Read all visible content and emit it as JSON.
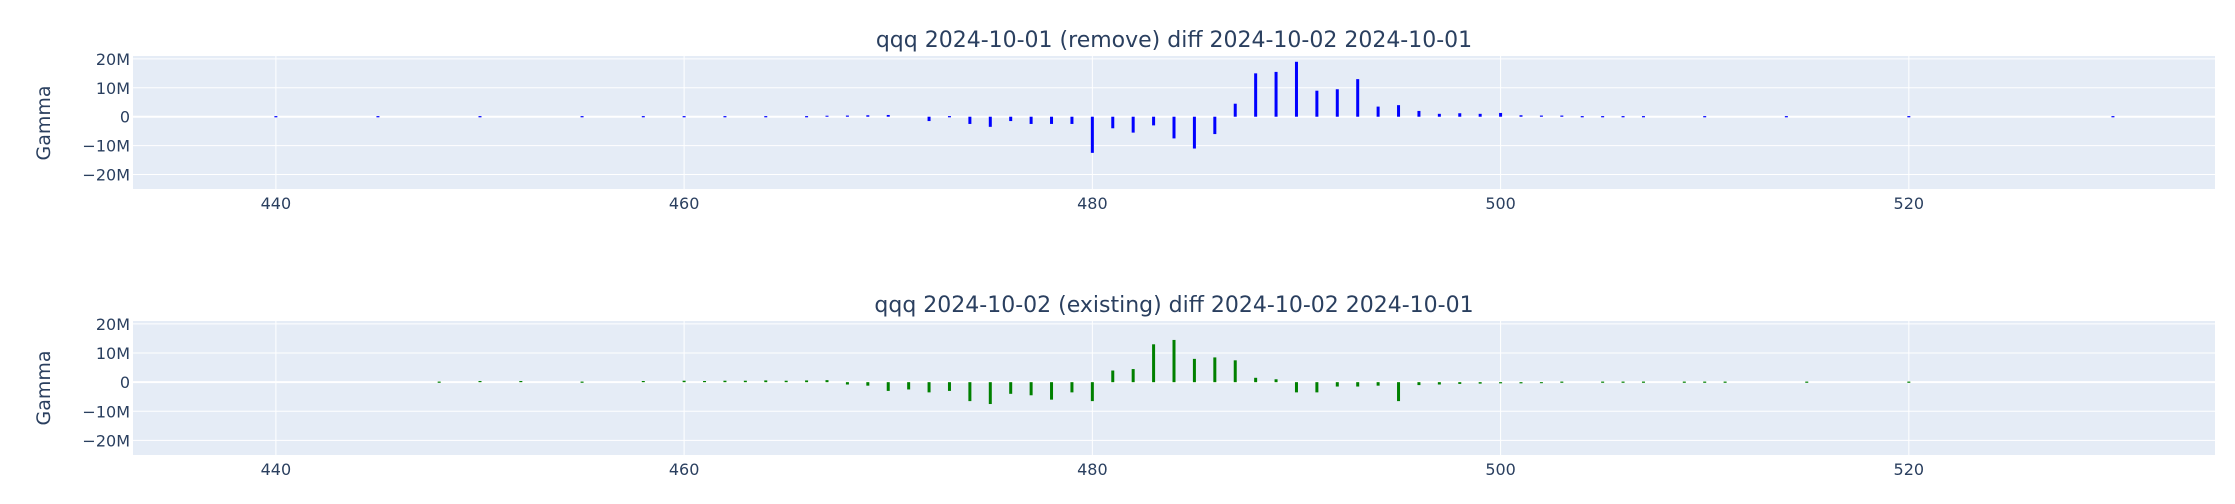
{
  "chart_data": [
    {
      "type": "bar",
      "title": "qqq 2024-10-01 (remove) diff 2024-10-02 2024-10-01",
      "ylabel": "Gamma",
      "xlabel": "",
      "color": "#0000ff",
      "background": "#e5ecf6",
      "xlim": [
        433,
        535
      ],
      "ylim": [
        -25000000,
        21000000
      ],
      "xticks": [
        {
          "v": 440,
          "label": "440"
        },
        {
          "v": 460,
          "label": "460"
        },
        {
          "v": 480,
          "label": "480"
        },
        {
          "v": 500,
          "label": "500"
        },
        {
          "v": 520,
          "label": "520"
        }
      ],
      "yticks": [
        {
          "v": 20000000,
          "label": "20M"
        },
        {
          "v": 10000000,
          "label": "10M"
        },
        {
          "v": 0,
          "label": "0"
        },
        {
          "v": -10000000,
          "label": "−10M"
        },
        {
          "v": -20000000,
          "label": "−20M"
        }
      ],
      "x": [
        440,
        445,
        450,
        455,
        458,
        460,
        462,
        464,
        466,
        467,
        468,
        469,
        470,
        472,
        473,
        474,
        475,
        476,
        477,
        478,
        479,
        480,
        481,
        482,
        483,
        484,
        485,
        486,
        487,
        488,
        489,
        490,
        491,
        492,
        493,
        494,
        495,
        496,
        497,
        498,
        499,
        500,
        501,
        502,
        503,
        504,
        505,
        506,
        507,
        510,
        514,
        520,
        530
      ],
      "values": [
        50000,
        50000,
        50000,
        80000,
        100000,
        150000,
        200000,
        250000,
        300000,
        350000,
        400000,
        500000,
        600000,
        -1500000,
        -300000,
        -2500000,
        -3500000,
        -1500000,
        -2500000,
        -2500000,
        -2500000,
        -12500000,
        -4000000,
        -5500000,
        -3000000,
        -7500000,
        -11000000,
        -6000000,
        4500000,
        15000000,
        15500000,
        19000000,
        9000000,
        9500000,
        13000000,
        3500000,
        4000000,
        2000000,
        1000000,
        1200000,
        1000000,
        1300000,
        500000,
        400000,
        400000,
        300000,
        300000,
        250000,
        200000,
        150000,
        100000,
        80000,
        50000
      ]
    },
    {
      "type": "bar",
      "title": "qqq 2024-10-02 (existing) diff 2024-10-02 2024-10-01",
      "ylabel": "Gamma",
      "xlabel": "",
      "color": "#008000",
      "background": "#e5ecf6",
      "xlim": [
        433,
        535
      ],
      "ylim": [
        -25000000,
        21000000
      ],
      "xticks": [
        {
          "v": 440,
          "label": "440"
        },
        {
          "v": 460,
          "label": "460"
        },
        {
          "v": 480,
          "label": "480"
        },
        {
          "v": 500,
          "label": "500"
        },
        {
          "v": 520,
          "label": "520"
        }
      ],
      "yticks": [
        {
          "v": 20000000,
          "label": "20M"
        },
        {
          "v": 10000000,
          "label": "10M"
        },
        {
          "v": 0,
          "label": "0"
        },
        {
          "v": -10000000,
          "label": "−10M"
        },
        {
          "v": -20000000,
          "label": "−20M"
        }
      ],
      "x": [
        448,
        450,
        452,
        455,
        458,
        460,
        461,
        462,
        463,
        464,
        465,
        466,
        467,
        468,
        469,
        470,
        471,
        472,
        473,
        474,
        475,
        476,
        477,
        478,
        479,
        480,
        481,
        482,
        483,
        484,
        485,
        486,
        487,
        488,
        489,
        490,
        491,
        492,
        493,
        494,
        495,
        496,
        497,
        498,
        499,
        500,
        501,
        502,
        503,
        505,
        506,
        507,
        509,
        510,
        511,
        515,
        520
      ],
      "values": [
        300000,
        400000,
        400000,
        300000,
        400000,
        500000,
        400000,
        500000,
        500000,
        600000,
        500000,
        600000,
        700000,
        -800000,
        -1200000,
        -3000000,
        -2500000,
        -3500000,
        -3000000,
        -6500000,
        -7500000,
        -4000000,
        -4500000,
        -6000000,
        -3500000,
        -6500000,
        4000000,
        4500000,
        13000000,
        14500000,
        8000000,
        8500000,
        7500000,
        1500000,
        1000000,
        -3500000,
        -3500000,
        -1500000,
        -1500000,
        -1200000,
        -6500000,
        -1000000,
        -800000,
        -600000,
        -500000,
        -400000,
        -400000,
        -350000,
        -300000,
        -300000,
        -250000,
        -250000,
        -200000,
        -150000,
        -150000,
        -100000,
        -100000
      ]
    }
  ]
}
